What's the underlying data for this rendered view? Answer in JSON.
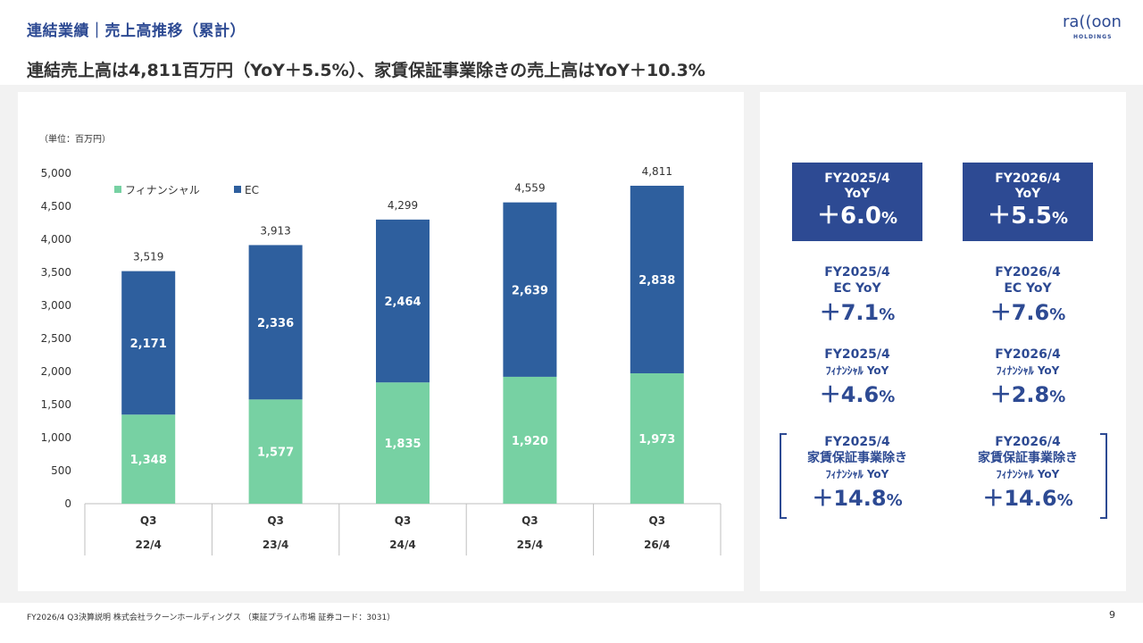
{
  "header": {
    "title": "連結業績｜売上高推移（累計）",
    "logo_main": "ra((oon",
    "logo_sub": "HOLDINGS"
  },
  "subtitle": "連結売上高は4,811百万円（YoY＋5.5%）、家賃保証事業除きの売上高はYoY＋10.3%",
  "chart_unit": "（単位：百万円）",
  "chart_data": {
    "type": "bar",
    "stacked": true,
    "categories": [
      [
        "Q3",
        "22/4"
      ],
      [
        "Q3",
        "23/4"
      ],
      [
        "Q3",
        "24/4"
      ],
      [
        "Q3",
        "25/4"
      ],
      [
        "Q3",
        "26/4"
      ]
    ],
    "series": [
      {
        "name": "フィナンシャル",
        "color": "#77d1a3",
        "values": [
          1348,
          1577,
          1835,
          1920,
          1973
        ]
      },
      {
        "name": "EC",
        "color": "#2e5f9e",
        "values": [
          2171,
          2336,
          2464,
          2639,
          2838
        ]
      }
    ],
    "totals": [
      3519,
      3913,
      4299,
      4559,
      4811
    ],
    "ylim": [
      0,
      5000
    ],
    "yticks": [
      0,
      500,
      1000,
      1500,
      2000,
      2500,
      3000,
      3500,
      4000,
      4500,
      5000
    ],
    "legend": "top-left",
    "grid": false
  },
  "kpis": {
    "fy2025_total": {
      "label1": "FY2025/4",
      "label2": "YoY",
      "value": "＋6.0",
      "unit": "%"
    },
    "fy2026_total": {
      "label1": "FY2026/4",
      "label2": "YoY",
      "value": "＋5.5",
      "unit": "%"
    },
    "fy2025_ec": {
      "label1": "FY2025/4",
      "label2": "EC YoY",
      "value": "＋7.1",
      "unit": "%"
    },
    "fy2026_ec": {
      "label1": "FY2026/4",
      "label2": "EC YoY",
      "value": "＋7.6",
      "unit": "%"
    },
    "fy2025_fin": {
      "label1": "FY2025/4",
      "label2": "ﾌｨﾅﾝｼｬﾙ YoY",
      "value": "＋4.6",
      "unit": "%"
    },
    "fy2026_fin": {
      "label1": "FY2026/4",
      "label2": "ﾌｨﾅﾝｼｬﾙ YoY",
      "value": "＋2.8",
      "unit": "%"
    },
    "fy2025_exrent": {
      "label1": "FY2025/4",
      "label2": "家賃保証事業除き",
      "label3": "ﾌｨﾅﾝｼｬﾙ YoY",
      "value": "＋14.8",
      "unit": "%"
    },
    "fy2026_exrent": {
      "label1": "FY2026/4",
      "label2": "家賃保証事業除き",
      "label3": "ﾌｨﾅﾝｼｬﾙ YoY",
      "value": "＋14.6",
      "unit": "%"
    }
  },
  "footer": "FY2026/4 Q3決算説明 株式会社ラクーンホールディングス （東証プライム市場 証券コード：3031）",
  "page_number": "9"
}
